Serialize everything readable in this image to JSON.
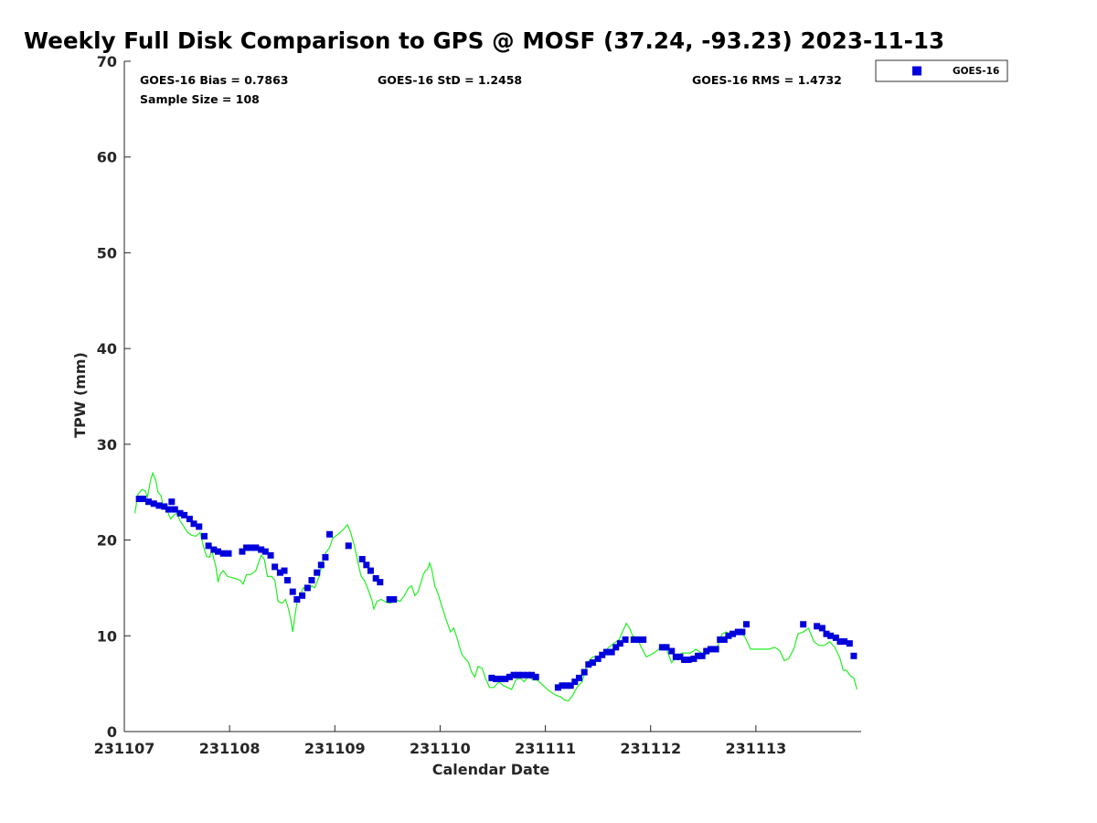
{
  "chart_data": {
    "type": "scatter",
    "title": "Weekly Full Disk Comparison to GPS @ MOSF (37.24, -93.23) 2023-11-13",
    "xlabel": "Calendar Date",
    "ylabel": "TPW (mm)",
    "xlim": [
      0,
      7
    ],
    "ylim": [
      0,
      70
    ],
    "x_ticks": [
      0,
      1,
      2,
      3,
      4,
      5,
      6
    ],
    "x_tick_labels": [
      "231107",
      "231108",
      "231109",
      "231110",
      "231111",
      "231112",
      "231113"
    ],
    "y_ticks": [
      0,
      10,
      20,
      30,
      40,
      50,
      60,
      70
    ],
    "y_tick_labels": [
      "0",
      "10",
      "20",
      "30",
      "40",
      "50",
      "60",
      "70"
    ],
    "x_unit": "days since 2023-11-07 00:00 UTC",
    "grid": false,
    "legend_position": "top-right",
    "stats": {
      "bias": "GOES-16 Bias = 0.7863",
      "std": "GOES-16 StD = 1.2458",
      "rms": "GOES-16 RMS = 1.4732",
      "sample": "Sample Size = 108"
    },
    "series": [
      {
        "name": "GOES-16",
        "style": "markers",
        "color": "#0000dd",
        "marker": "square",
        "points": [
          [
            0.14,
            24.3
          ],
          [
            0.18,
            24.3
          ],
          [
            0.23,
            24.0
          ],
          [
            0.28,
            23.8
          ],
          [
            0.33,
            23.6
          ],
          [
            0.38,
            23.5
          ],
          [
            0.42,
            23.2
          ],
          [
            0.45,
            24.0
          ],
          [
            0.48,
            23.2
          ],
          [
            0.53,
            22.8
          ],
          [
            0.57,
            22.6
          ],
          [
            0.62,
            22.2
          ],
          [
            0.66,
            21.7
          ],
          [
            0.71,
            21.4
          ],
          [
            0.76,
            20.4
          ],
          [
            0.8,
            19.4
          ],
          [
            0.85,
            19.0
          ],
          [
            0.89,
            18.8
          ],
          [
            0.94,
            18.6
          ],
          [
            0.99,
            18.6
          ],
          [
            1.12,
            18.8
          ],
          [
            1.16,
            19.2
          ],
          [
            1.21,
            19.2
          ],
          [
            1.25,
            19.2
          ],
          [
            1.3,
            19.0
          ],
          [
            1.34,
            18.8
          ],
          [
            1.39,
            18.4
          ],
          [
            1.43,
            17.2
          ],
          [
            1.48,
            16.6
          ],
          [
            1.52,
            16.8
          ],
          [
            1.55,
            15.8
          ],
          [
            1.6,
            14.6
          ],
          [
            1.64,
            13.8
          ],
          [
            1.69,
            14.2
          ],
          [
            1.74,
            15.0
          ],
          [
            1.78,
            15.8
          ],
          [
            1.83,
            16.6
          ],
          [
            1.87,
            17.4
          ],
          [
            1.91,
            18.2
          ],
          [
            1.95,
            20.6
          ],
          [
            2.13,
            19.4
          ],
          [
            2.26,
            18.0
          ],
          [
            2.3,
            17.4
          ],
          [
            2.34,
            16.8
          ],
          [
            2.39,
            16.0
          ],
          [
            2.43,
            15.6
          ],
          [
            2.52,
            13.8
          ],
          [
            2.56,
            13.8
          ],
          [
            3.49,
            5.6
          ],
          [
            3.53,
            5.5
          ],
          [
            3.58,
            5.5
          ],
          [
            3.62,
            5.5
          ],
          [
            3.66,
            5.7
          ],
          [
            3.7,
            5.9
          ],
          [
            3.74,
            5.9
          ],
          [
            3.78,
            5.9
          ],
          [
            3.83,
            5.9
          ],
          [
            3.87,
            5.9
          ],
          [
            3.91,
            5.7
          ],
          [
            4.12,
            4.6
          ],
          [
            4.16,
            4.8
          ],
          [
            4.2,
            4.8
          ],
          [
            4.24,
            4.8
          ],
          [
            4.28,
            5.2
          ],
          [
            4.32,
            5.6
          ],
          [
            4.37,
            6.2
          ],
          [
            4.41,
            7.0
          ],
          [
            4.45,
            7.2
          ],
          [
            4.5,
            7.6
          ],
          [
            4.54,
            8.0
          ],
          [
            4.58,
            8.3
          ],
          [
            4.63,
            8.3
          ],
          [
            4.67,
            8.8
          ],
          [
            4.71,
            9.2
          ],
          [
            4.76,
            9.6
          ],
          [
            4.84,
            9.6
          ],
          [
            4.89,
            9.6
          ],
          [
            4.93,
            9.6
          ],
          [
            5.11,
            8.8
          ],
          [
            5.15,
            8.8
          ],
          [
            5.2,
            8.4
          ],
          [
            5.24,
            7.8
          ],
          [
            5.28,
            7.8
          ],
          [
            5.32,
            7.5
          ],
          [
            5.36,
            7.5
          ],
          [
            5.41,
            7.6
          ],
          [
            5.45,
            7.9
          ],
          [
            5.49,
            7.9
          ],
          [
            5.53,
            8.4
          ],
          [
            5.57,
            8.6
          ],
          [
            5.62,
            8.6
          ],
          [
            5.66,
            9.6
          ],
          [
            5.7,
            9.6
          ],
          [
            5.74,
            10.0
          ],
          [
            5.78,
            10.2
          ],
          [
            5.83,
            10.4
          ],
          [
            5.87,
            10.4
          ],
          [
            5.91,
            11.2
          ],
          [
            6.45,
            11.2
          ],
          [
            6.58,
            11.0
          ],
          [
            6.63,
            10.8
          ],
          [
            6.67,
            10.2
          ],
          [
            6.71,
            10.0
          ],
          [
            6.76,
            9.8
          ],
          [
            6.8,
            9.4
          ],
          [
            6.84,
            9.4
          ],
          [
            6.89,
            9.2
          ],
          [
            6.93,
            7.9
          ]
        ]
      },
      {
        "style": "line",
        "color": "#22ee22",
        "points": [
          [
            0.1,
            22.8
          ],
          [
            0.13,
            24.8
          ],
          [
            0.17,
            25.3
          ],
          [
            0.2,
            25.1
          ],
          [
            0.22,
            24.5
          ],
          [
            0.25,
            26.3
          ],
          [
            0.27,
            27.0
          ],
          [
            0.3,
            26.2
          ],
          [
            0.32,
            25.0
          ],
          [
            0.35,
            24.6
          ],
          [
            0.37,
            23.4
          ],
          [
            0.4,
            23.6
          ],
          [
            0.42,
            22.7
          ],
          [
            0.44,
            22.2
          ],
          [
            0.47,
            22.6
          ],
          [
            0.5,
            22.8
          ],
          [
            0.53,
            22.0
          ],
          [
            0.56,
            21.5
          ],
          [
            0.6,
            20.8
          ],
          [
            0.64,
            20.5
          ],
          [
            0.68,
            20.4
          ],
          [
            0.72,
            20.8
          ],
          [
            0.75,
            19.4
          ],
          [
            0.78,
            18.3
          ],
          [
            0.81,
            18.2
          ],
          [
            0.83,
            19.0
          ],
          [
            0.85,
            18.0
          ],
          [
            0.87,
            17.2
          ],
          [
            0.89,
            15.6
          ],
          [
            0.91,
            16.4
          ],
          [
            0.94,
            16.8
          ],
          [
            0.98,
            16.2
          ],
          [
            1.05,
            16.0
          ],
          [
            1.1,
            15.8
          ],
          [
            1.13,
            15.4
          ],
          [
            1.16,
            16.4
          ],
          [
            1.2,
            16.4
          ],
          [
            1.25,
            16.8
          ],
          [
            1.28,
            17.8
          ],
          [
            1.3,
            18.4
          ],
          [
            1.33,
            18.0
          ],
          [
            1.36,
            16.2
          ],
          [
            1.4,
            16.2
          ],
          [
            1.43,
            15.8
          ],
          [
            1.46,
            13.6
          ],
          [
            1.5,
            13.4
          ],
          [
            1.53,
            13.8
          ],
          [
            1.56,
            12.8
          ],
          [
            1.58,
            11.8
          ],
          [
            1.6,
            10.4
          ],
          [
            1.62,
            12.0
          ],
          [
            1.64,
            13.4
          ],
          [
            1.66,
            14.0
          ],
          [
            1.7,
            15.0
          ],
          [
            1.74,
            14.8
          ],
          [
            1.78,
            15.2
          ],
          [
            1.81,
            15.0
          ],
          [
            1.85,
            16.2
          ],
          [
            1.88,
            17.6
          ],
          [
            1.91,
            18.6
          ],
          [
            1.95,
            19.2
          ],
          [
            1.98,
            20.2
          ],
          [
            2.03,
            20.6
          ],
          [
            2.08,
            21.1
          ],
          [
            2.12,
            21.6
          ],
          [
            2.15,
            20.8
          ],
          [
            2.19,
            19.2
          ],
          [
            2.22,
            17.6
          ],
          [
            2.25,
            16.2
          ],
          [
            2.28,
            15.8
          ],
          [
            2.31,
            15.0
          ],
          [
            2.35,
            13.8
          ],
          [
            2.37,
            12.8
          ],
          [
            2.4,
            13.6
          ],
          [
            2.44,
            13.8
          ],
          [
            2.49,
            13.5
          ],
          [
            2.53,
            13.4
          ],
          [
            2.57,
            13.8
          ],
          [
            2.62,
            13.6
          ],
          [
            2.66,
            14.2
          ],
          [
            2.7,
            15.0
          ],
          [
            2.73,
            15.2
          ],
          [
            2.76,
            14.2
          ],
          [
            2.79,
            14.6
          ],
          [
            2.82,
            15.6
          ],
          [
            2.84,
            16.4
          ],
          [
            2.86,
            16.8
          ],
          [
            2.88,
            16.9
          ],
          [
            2.9,
            17.6
          ],
          [
            2.92,
            17.0
          ],
          [
            2.95,
            15.2
          ],
          [
            2.98,
            14.4
          ],
          [
            3.02,
            13.0
          ],
          [
            3.06,
            11.6
          ],
          [
            3.1,
            10.4
          ],
          [
            3.13,
            10.8
          ],
          [
            3.16,
            9.8
          ],
          [
            3.19,
            8.6
          ],
          [
            3.21,
            8.0
          ],
          [
            3.24,
            7.6
          ],
          [
            3.27,
            7.2
          ],
          [
            3.3,
            6.2
          ],
          [
            3.33,
            5.7
          ],
          [
            3.36,
            6.8
          ],
          [
            3.4,
            6.6
          ],
          [
            3.43,
            5.6
          ],
          [
            3.47,
            4.6
          ],
          [
            3.51,
            4.6
          ],
          [
            3.56,
            5.2
          ],
          [
            3.6,
            4.8
          ],
          [
            3.64,
            4.6
          ],
          [
            3.68,
            4.4
          ],
          [
            3.72,
            5.4
          ],
          [
            3.76,
            5.6
          ],
          [
            3.8,
            5.2
          ],
          [
            3.84,
            5.8
          ],
          [
            3.88,
            5.4
          ],
          [
            3.92,
            5.4
          ],
          [
            3.98,
            4.8
          ],
          [
            4.04,
            4.2
          ],
          [
            4.1,
            3.8
          ],
          [
            4.15,
            3.6
          ],
          [
            4.18,
            3.3
          ],
          [
            4.22,
            3.2
          ],
          [
            4.26,
            3.8
          ],
          [
            4.3,
            4.6
          ],
          [
            4.35,
            5.2
          ],
          [
            4.4,
            7.2
          ],
          [
            4.45,
            7.8
          ],
          [
            4.5,
            7.8
          ],
          [
            4.55,
            8.2
          ],
          [
            4.6,
            8.8
          ],
          [
            4.65,
            9.2
          ],
          [
            4.7,
            9.6
          ],
          [
            4.74,
            10.6
          ],
          [
            4.77,
            11.3
          ],
          [
            4.8,
            10.8
          ],
          [
            4.83,
            10.0
          ],
          [
            4.87,
            9.8
          ],
          [
            4.92,
            8.6
          ],
          [
            4.96,
            7.8
          ],
          [
            5.03,
            8.2
          ],
          [
            5.1,
            8.8
          ],
          [
            5.15,
            8.6
          ],
          [
            5.2,
            7.2
          ],
          [
            5.24,
            7.8
          ],
          [
            5.3,
            8.2
          ],
          [
            5.38,
            8.2
          ],
          [
            5.43,
            8.6
          ],
          [
            5.48,
            8.2
          ],
          [
            5.52,
            8.0
          ],
          [
            5.56,
            8.4
          ],
          [
            5.6,
            8.6
          ],
          [
            5.64,
            9.0
          ],
          [
            5.68,
            10.2
          ],
          [
            5.72,
            10.4
          ],
          [
            5.76,
            10.0
          ],
          [
            5.8,
            10.4
          ],
          [
            5.85,
            10.6
          ],
          [
            5.9,
            9.8
          ],
          [
            5.95,
            8.6
          ],
          [
            6.0,
            8.6
          ],
          [
            6.06,
            8.6
          ],
          [
            6.12,
            8.6
          ],
          [
            6.18,
            8.8
          ],
          [
            6.23,
            8.4
          ],
          [
            6.27,
            7.4
          ],
          [
            6.31,
            7.6
          ],
          [
            6.36,
            8.6
          ],
          [
            6.4,
            10.2
          ],
          [
            6.45,
            10.4
          ],
          [
            6.5,
            10.8
          ],
          [
            6.55,
            9.4
          ],
          [
            6.6,
            9.0
          ],
          [
            6.65,
            9.0
          ],
          [
            6.7,
            9.4
          ],
          [
            6.75,
            8.8
          ],
          [
            6.8,
            7.6
          ],
          [
            6.83,
            6.4
          ],
          [
            6.86,
            6.4
          ],
          [
            6.9,
            5.8
          ],
          [
            6.93,
            5.6
          ],
          [
            6.96,
            4.4
          ]
        ]
      }
    ]
  }
}
